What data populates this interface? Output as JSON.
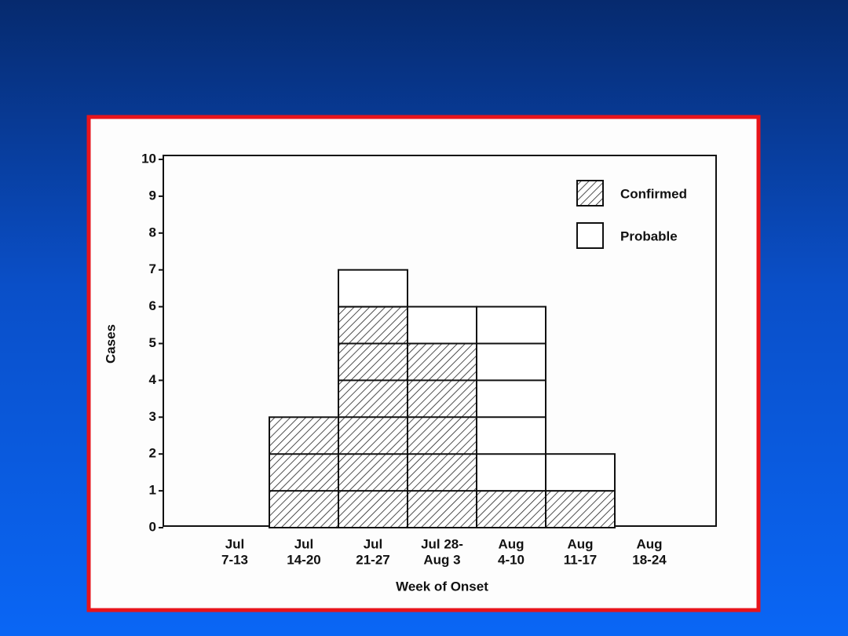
{
  "chart_data": {
    "type": "stacked-bar",
    "categories": [
      [
        "Jul",
        "7-13"
      ],
      [
        "Jul",
        "14-20"
      ],
      [
        "Jul",
        "21-27"
      ],
      [
        "Jul 28-",
        "Aug 3"
      ],
      [
        "Aug",
        "4-10"
      ],
      [
        "Aug",
        "11-17"
      ],
      [
        "Aug",
        "18-24"
      ]
    ],
    "series": [
      {
        "name": "Confirmed",
        "color": "#222222",
        "pattern": "hatch",
        "values": [
          0,
          3,
          6,
          5,
          1,
          1,
          0
        ]
      },
      {
        "name": "Probable",
        "color": "#ffffff",
        "pattern": "solid",
        "values": [
          0,
          0,
          1,
          1,
          5,
          1,
          0
        ]
      }
    ],
    "x_label": "Week of Onset",
    "y_label": "Cases",
    "ylim": [
      0,
      10
    ],
    "yticks": [
      0,
      1,
      2,
      3,
      4,
      5,
      6,
      7,
      8,
      9,
      10
    ],
    "legend": "top-right",
    "grid": false
  }
}
